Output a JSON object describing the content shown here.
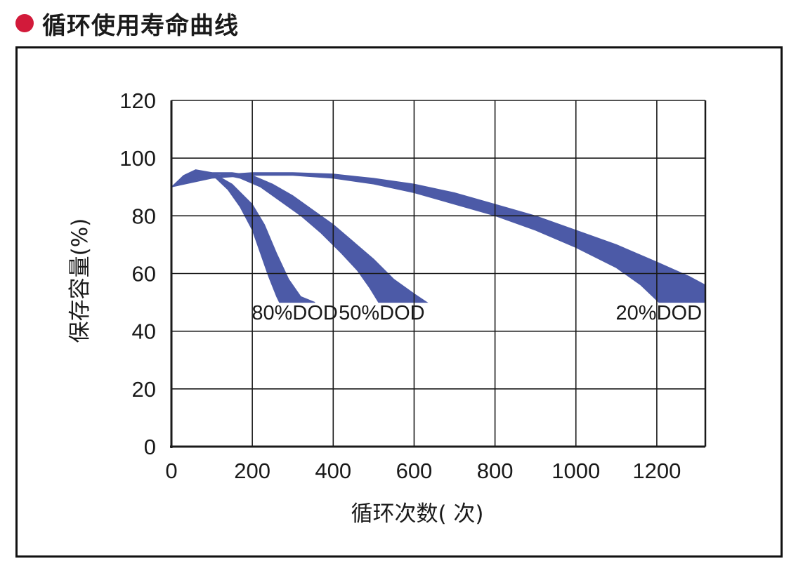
{
  "title": "循环使用寿命曲线",
  "colors": {
    "bullet": "#d21a3a",
    "band": "#4c5aa7",
    "grid": "#1a1a1a"
  },
  "chart_data": {
    "type": "area",
    "title": "循环使用寿命曲线",
    "xlabel": "循环次数( 次)",
    "ylabel": "保存容量(%)",
    "xlim": [
      0,
      1320
    ],
    "ylim": [
      0,
      120
    ],
    "x_ticks": [
      0,
      200,
      400,
      600,
      800,
      1000,
      1200
    ],
    "y_ticks": [
      0,
      20,
      40,
      60,
      80,
      100,
      120
    ],
    "x_grid": [
      0,
      200,
      400,
      600,
      800,
      1000,
      1200,
      1320
    ],
    "y_grid": [
      0,
      20,
      40,
      60,
      80,
      100,
      120
    ],
    "grid": true,
    "series": [
      {
        "name": "80%DOD",
        "upper": [
          [
            0,
            90
          ],
          [
            30,
            94
          ],
          [
            60,
            96
          ],
          [
            100,
            95
          ],
          [
            150,
            91
          ],
          [
            200,
            84
          ],
          [
            230,
            77
          ],
          [
            260,
            67
          ],
          [
            290,
            58
          ],
          [
            320,
            52
          ],
          [
            355,
            50
          ]
        ],
        "lower": [
          [
            0,
            90
          ],
          [
            40,
            92
          ],
          [
            80,
            94
          ],
          [
            110,
            93
          ],
          [
            140,
            89
          ],
          [
            170,
            83
          ],
          [
            200,
            75
          ],
          [
            220,
            67
          ],
          [
            240,
            59
          ],
          [
            260,
            52
          ],
          [
            267,
            50
          ]
        ]
      },
      {
        "name": "50%DOD",
        "upper": [
          [
            0,
            90
          ],
          [
            50,
            93
          ],
          [
            100,
            95
          ],
          [
            150,
            95
          ],
          [
            200,
            94
          ],
          [
            250,
            91
          ],
          [
            300,
            87
          ],
          [
            350,
            82
          ],
          [
            400,
            77
          ],
          [
            450,
            71
          ],
          [
            500,
            65
          ],
          [
            550,
            58
          ],
          [
            600,
            53
          ],
          [
            632,
            50
          ]
        ],
        "lower": [
          [
            0,
            90
          ],
          [
            70,
            93
          ],
          [
            120,
            94.5
          ],
          [
            170,
            93
          ],
          [
            220,
            90
          ],
          [
            270,
            85
          ],
          [
            320,
            80
          ],
          [
            370,
            74
          ],
          [
            420,
            67
          ],
          [
            460,
            61
          ],
          [
            490,
            55
          ],
          [
            512,
            50
          ]
        ]
      },
      {
        "name": "20%DOD",
        "upper": [
          [
            0,
            90
          ],
          [
            100,
            94
          ],
          [
            200,
            95
          ],
          [
            300,
            95
          ],
          [
            400,
            94.5
          ],
          [
            500,
            93
          ],
          [
            600,
            91
          ],
          [
            700,
            88
          ],
          [
            800,
            84
          ],
          [
            900,
            80
          ],
          [
            1000,
            75
          ],
          [
            1100,
            70
          ],
          [
            1200,
            64
          ],
          [
            1280,
            59
          ],
          [
            1320,
            56
          ]
        ],
        "lower": [
          [
            0,
            90
          ],
          [
            100,
            93
          ],
          [
            200,
            94
          ],
          [
            300,
            94
          ],
          [
            400,
            93
          ],
          [
            500,
            91
          ],
          [
            600,
            88
          ],
          [
            700,
            84
          ],
          [
            800,
            80
          ],
          [
            900,
            75
          ],
          [
            1000,
            69
          ],
          [
            1100,
            62
          ],
          [
            1160,
            56
          ],
          [
            1205,
            50
          ],
          [
            1320,
            50
          ]
        ]
      }
    ],
    "annotations": [
      {
        "text": "80%DOD",
        "x": 305,
        "y": 44
      },
      {
        "text": "50%DOD",
        "x": 520,
        "y": 44
      },
      {
        "text": "20%DOD",
        "x": 1205,
        "y": 44
      }
    ]
  }
}
